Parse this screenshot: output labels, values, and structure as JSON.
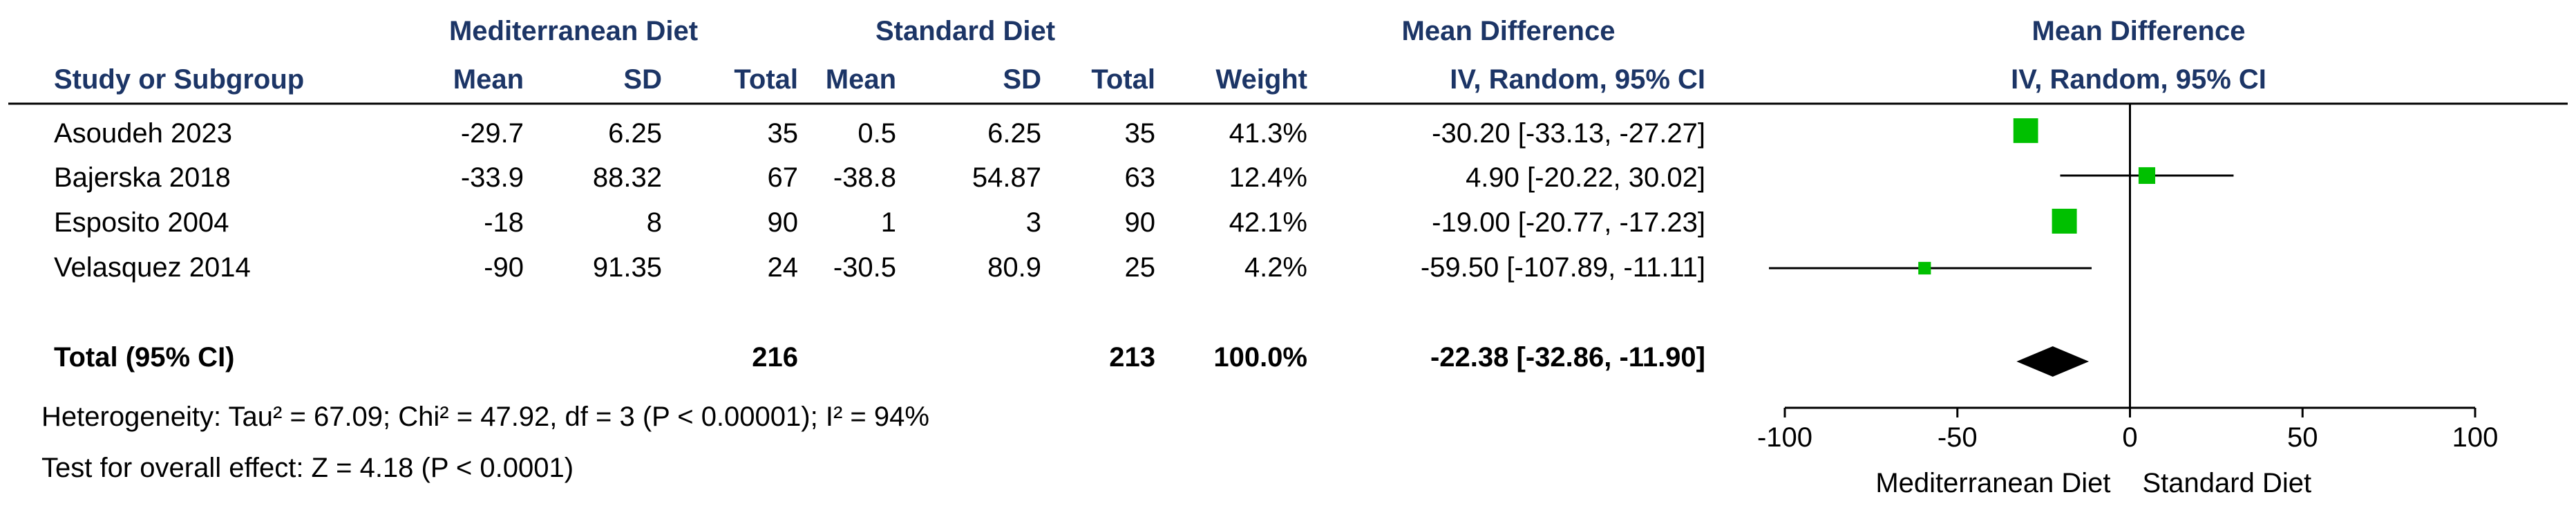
{
  "chart_data": {
    "type": "forest",
    "groups": {
      "experimental": "Mediterranean Diet",
      "control": "Standard Diet"
    },
    "columns": {
      "study": "Study or Subgroup",
      "mean": "Mean",
      "sd": "SD",
      "total": "Total",
      "weight": "Weight",
      "md_title": "Mean Difference",
      "md_method": "IV, Random, 95% CI"
    },
    "plot_header": {
      "title": "Mean Difference",
      "method": "IV, Random, 95% CI"
    },
    "studies": [
      {
        "name": "Asoudeh 2023",
        "exp_mean": "-29.7",
        "exp_sd": "6.25",
        "exp_total": "35",
        "ctl_mean": "0.5",
        "ctl_sd": "6.25",
        "ctl_total": "35",
        "weight": "41.3%",
        "ci_text": "-30.20 [-33.13, -27.27]",
        "md": -30.2,
        "lo": -33.13,
        "hi": -27.27,
        "w": 41.3
      },
      {
        "name": "Bajerska 2018",
        "exp_mean": "-33.9",
        "exp_sd": "88.32",
        "exp_total": "67",
        "ctl_mean": "-38.8",
        "ctl_sd": "54.87",
        "ctl_total": "63",
        "weight": "12.4%",
        "ci_text": "4.90 [-20.22, 30.02]",
        "md": 4.9,
        "lo": -20.22,
        "hi": 30.02,
        "w": 12.4
      },
      {
        "name": "Esposito 2004",
        "exp_mean": "-18",
        "exp_sd": "8",
        "exp_total": "90",
        "ctl_mean": "1",
        "ctl_sd": "3",
        "ctl_total": "90",
        "weight": "42.1%",
        "ci_text": "-19.00 [-20.77, -17.23]",
        "md": -19.0,
        "lo": -20.77,
        "hi": -17.23,
        "w": 42.1
      },
      {
        "name": "Velasquez 2014",
        "exp_mean": "-90",
        "exp_sd": "91.35",
        "exp_total": "24",
        "ctl_mean": "-30.5",
        "ctl_sd": "80.9",
        "ctl_total": "25",
        "weight": "4.2%",
        "ci_text": "-59.50 [-107.89, -11.11]",
        "md": -59.5,
        "lo": -107.89,
        "hi": -11.11,
        "w": 4.2
      }
    ],
    "total": {
      "label": "Total (95% CI)",
      "exp_total": "216",
      "ctl_total": "213",
      "weight": "100.0%",
      "ci_text": "-22.38 [-32.86, -11.90]",
      "md": -22.38,
      "lo": -32.86,
      "hi": -11.9
    },
    "heterogeneity": "Heterogeneity: Tau² = 67.09; Chi² = 47.92, df = 3 (P < 0.00001); I² = 94%",
    "overall_effect": "Test for overall effect: Z = 4.18 (P < 0.0001)",
    "axis": {
      "xlim": [
        -100,
        100
      ],
      "ticks": [
        -100,
        -50,
        0,
        50,
        100
      ],
      "tick_labels": [
        "-100",
        "-50",
        "0",
        "50",
        "100"
      ],
      "favours_left": "Mediterranean Diet",
      "favours_right": "Standard Diet"
    },
    "colors": {
      "square": "#00c000",
      "diamond": "#000000",
      "header_text": "#1c3566"
    }
  }
}
